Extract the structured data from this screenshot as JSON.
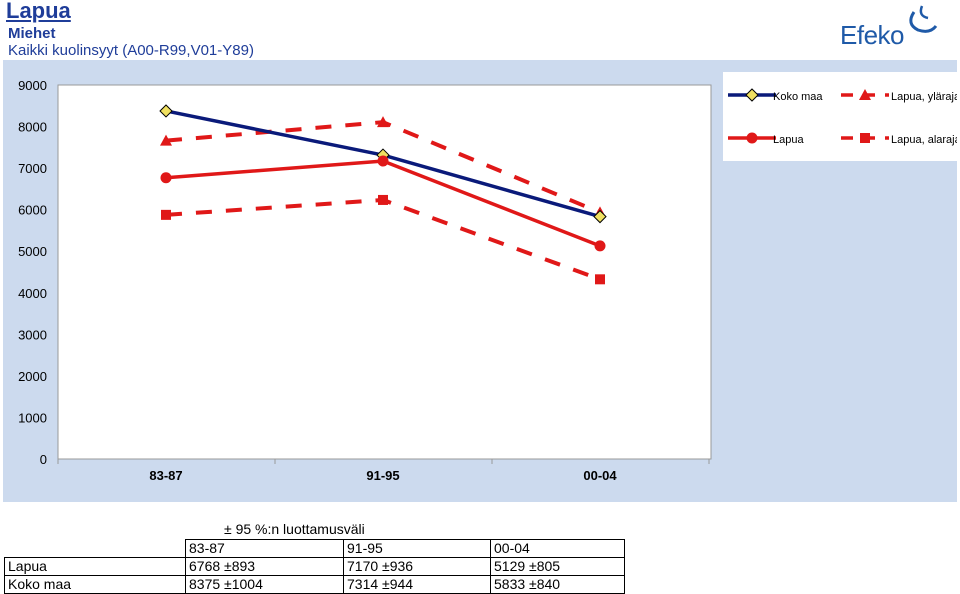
{
  "header": {
    "title": "Lapua",
    "subtitle": "Miehet",
    "subtitle2": "Kaikki kuolinsyyt (A00-R99,V01-Y89)",
    "logo_text": "Efeko"
  },
  "colors": {
    "koko_maa": "#0a1a7a",
    "lapua": "#e01818",
    "plot_bg": "#ffffff",
    "panel_bg": "#ccdaee",
    "marker_diamond": "#f0e060"
  },
  "chart_data": {
    "type": "line",
    "categories": [
      "83-87",
      "91-95",
      "00-04"
    ],
    "ylim": [
      0,
      9000
    ],
    "yticks": [
      "0",
      "1000",
      "2000",
      "3000",
      "4000",
      "5000",
      "6000",
      "7000",
      "8000",
      "9000"
    ],
    "grid": false,
    "legend_position": "top-right",
    "series": [
      {
        "name": "Koko maa",
        "values": [
          8375,
          7314,
          5833
        ],
        "style": "solid",
        "marker": "diamond",
        "color": "#0a1a7a"
      },
      {
        "name": "Lapua",
        "values": [
          6768,
          7170,
          5129
        ],
        "style": "solid",
        "marker": "circle",
        "color": "#e01818"
      },
      {
        "name": "Lapua, yläraja",
        "values": [
          7661,
          8106,
          5934
        ],
        "style": "dashed",
        "marker": "triangle",
        "color": "#e01818"
      },
      {
        "name": "Lapua, alaraja",
        "values": [
          5875,
          6234,
          4324
        ],
        "style": "dashed",
        "marker": "square",
        "color": "#e01818"
      }
    ]
  },
  "ci_table": {
    "caption": "± 95 %:n luottamusväli",
    "headers": [
      "83-87",
      "91-95",
      "00-04"
    ],
    "rows": [
      {
        "label": "Lapua",
        "values": [
          "6768 ±893",
          "7170 ±936",
          "5129 ±805"
        ]
      },
      {
        "label": "Koko maa",
        "values": [
          "8375 ±1004",
          "7314 ±944",
          "5833 ±840"
        ]
      }
    ]
  }
}
